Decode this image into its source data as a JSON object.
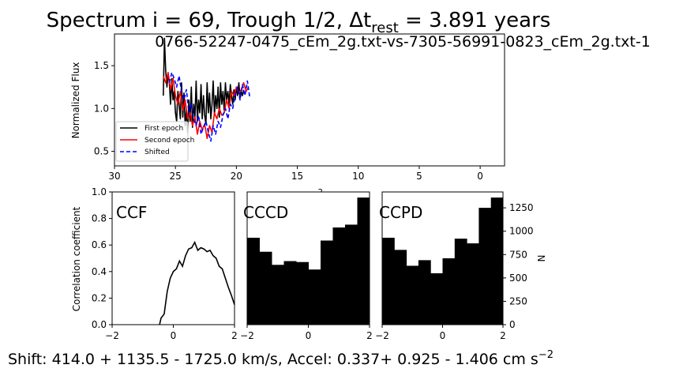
{
  "figure": {
    "title_main": "Spectrum i = 69, Trough 1/2, Δt",
    "title_sub": "rest",
    "title_tail": " = 3.891 years",
    "subtitle": "0766-52247-0475_cEm_2g.txt-vs-7305-56991-0823_cEm_2g.txt-1",
    "footer_main": "Shift: 414.0 + 1135.5 - 1725.0 km/s, Accel: 0.337+ 0.925 - 1.406 cm s",
    "footer_sup": "−2"
  },
  "chart_data": [
    {
      "id": "spectrum",
      "type": "line",
      "ylabel": "Normalized Flux",
      "xlabel_partial": "-2",
      "xlim": [
        30,
        -2
      ],
      "ylim": [
        0.33,
        1.87
      ],
      "xticks": [
        30,
        25,
        20,
        15,
        10,
        5,
        0
      ],
      "yticks": [
        0.5,
        1.0,
        1.5
      ],
      "xtick_labels": [
        "30",
        "25",
        "20",
        "15",
        "10",
        "5",
        "0"
      ],
      "ytick_labels": [
        "0.5",
        "1.0",
        "1.5"
      ],
      "legend": {
        "position": "lower-left",
        "entries": [
          "First epoch",
          "Second epoch",
          "Shifted"
        ]
      },
      "colors": {
        "first": "#000000",
        "second": "#ff0000",
        "shifted": "#0000ff",
        "gray": "#bfbfbf"
      },
      "series": [
        {
          "name": "First epoch",
          "style": "solid",
          "x": [
            26.0,
            25.9,
            25.8,
            25.7,
            25.6,
            25.5,
            25.4,
            25.3,
            25.2,
            25.1,
            25.0,
            24.9,
            24.8,
            24.7,
            24.6,
            24.5,
            24.4,
            24.3,
            24.2,
            24.1,
            24.0,
            23.9,
            23.8,
            23.7,
            23.6,
            23.5,
            23.4,
            23.3,
            23.2,
            23.1,
            23.0,
            22.9,
            22.8,
            22.7,
            22.6,
            22.5,
            22.4,
            22.3,
            22.2,
            22.1,
            22.0,
            21.9,
            21.8,
            21.7,
            21.6,
            21.5,
            21.4,
            21.3,
            21.2,
            21.1,
            21.0,
            20.9,
            20.8,
            20.7,
            20.6,
            20.5,
            20.4,
            20.3,
            20.2,
            20.1,
            20.0,
            19.9,
            19.8,
            19.7,
            19.6,
            19.5,
            19.4
          ],
          "y": [
            1.15,
            1.82,
            1.45,
            1.25,
            1.4,
            1.3,
            1.05,
            1.35,
            1.1,
            1.2,
            0.95,
            0.85,
            1.2,
            1.05,
            0.88,
            1.3,
            0.9,
            1.18,
            0.8,
            0.98,
            0.72,
            1.1,
            0.85,
            1.25,
            0.78,
            1.05,
            0.9,
            1.32,
            0.85,
            1.1,
            0.95,
            1.28,
            0.88,
            1.15,
            0.92,
            0.82,
            1.3,
            0.95,
            1.18,
            0.88,
            1.05,
            1.32,
            0.92,
            1.15,
            1.0,
            1.25,
            0.9,
            1.3,
            1.05,
            1.2,
            0.98,
            1.3,
            1.1,
            1.2,
            1.05,
            1.28,
            1.15,
            1.05,
            1.22,
            1.1,
            1.25,
            1.15,
            1.3,
            1.12,
            1.2,
            1.15,
            1.22
          ]
        },
        {
          "name": "Second epoch",
          "style": "solid",
          "x": [
            26.0,
            25.8,
            25.6,
            25.4,
            25.2,
            25.0,
            24.8,
            24.6,
            24.4,
            24.2,
            24.0,
            23.8,
            23.6,
            23.4,
            23.2,
            23.0,
            22.8,
            22.6,
            22.4,
            22.2,
            22.0,
            21.8,
            21.6,
            21.4,
            21.2,
            21.0,
            20.8,
            20.6,
            20.4,
            20.2,
            20.0,
            19.8,
            19.6,
            19.4,
            19.2,
            19.0
          ],
          "y": [
            1.38,
            1.3,
            1.42,
            1.22,
            1.35,
            1.15,
            1.05,
            1.2,
            0.98,
            1.1,
            0.88,
            0.95,
            0.8,
            0.9,
            0.7,
            0.85,
            0.75,
            0.82,
            0.65,
            0.8,
            0.72,
            0.95,
            0.88,
            1.0,
            0.92,
            0.95,
            1.1,
            1.0,
            1.2,
            1.15,
            1.25,
            1.18,
            1.22,
            1.3,
            1.2,
            1.25
          ]
        },
        {
          "name": "Shifted",
          "style": "dashed",
          "x": [
            25.5,
            25.3,
            25.1,
            24.9,
            24.7,
            24.5,
            24.3,
            24.1,
            23.9,
            23.7,
            23.5,
            23.3,
            23.1,
            22.9,
            22.7,
            22.5,
            22.3,
            22.1,
            21.9,
            21.7,
            21.5,
            21.3,
            21.1,
            20.9,
            20.7,
            20.5,
            20.3,
            20.1,
            19.9,
            19.7,
            19.5,
            19.3,
            19.1,
            18.9
          ],
          "y": [
            1.3,
            1.42,
            1.35,
            1.25,
            1.38,
            1.2,
            1.1,
            1.22,
            0.95,
            1.05,
            0.88,
            0.8,
            0.92,
            0.7,
            0.78,
            0.85,
            0.72,
            0.62,
            0.8,
            0.7,
            0.85,
            0.78,
            0.92,
            1.0,
            0.88,
            1.05,
            1.0,
            1.15,
            1.25,
            1.1,
            1.28,
            1.15,
            1.32,
            1.12
          ]
        }
      ]
    },
    {
      "id": "ccf",
      "type": "line",
      "label": "CCF",
      "ylabel": "Correlation coefficient",
      "xlim": [
        -2,
        2
      ],
      "ylim": [
        0,
        1
      ],
      "xticks": [
        -2,
        0,
        2
      ],
      "yticks": [
        0.0,
        0.2,
        0.4,
        0.6,
        0.8,
        1.0
      ],
      "xtick_labels": [
        "−2",
        "0",
        "2"
      ],
      "ytick_labels": [
        "0.0",
        "0.2",
        "0.4",
        "0.6",
        "0.8",
        "1.0"
      ],
      "x": [
        -0.45,
        -0.4,
        -0.3,
        -0.2,
        -0.1,
        0.0,
        0.1,
        0.2,
        0.3,
        0.4,
        0.5,
        0.6,
        0.7,
        0.8,
        0.9,
        1.0,
        1.1,
        1.2,
        1.3,
        1.4,
        1.5,
        1.6,
        1.7,
        1.8,
        1.9,
        2.0
      ],
      "y": [
        0.0,
        0.05,
        0.08,
        0.25,
        0.35,
        0.4,
        0.42,
        0.48,
        0.44,
        0.52,
        0.57,
        0.58,
        0.62,
        0.56,
        0.58,
        0.57,
        0.55,
        0.56,
        0.52,
        0.5,
        0.44,
        0.42,
        0.35,
        0.28,
        0.22,
        0.15
      ]
    },
    {
      "id": "cccd",
      "type": "bar",
      "label": "CCCD",
      "xlim": [
        -2,
        2
      ],
      "ylim": [
        0,
        1420
      ],
      "xticks": [
        -2,
        0,
        2
      ],
      "xtick_labels": [
        "−2",
        "0",
        "2"
      ],
      "bin_edges": [
        -2.0,
        -1.6,
        -1.2,
        -0.8,
        -0.4,
        0.0,
        0.4,
        0.8,
        1.2,
        1.6,
        2.0
      ],
      "values": [
        930,
        780,
        640,
        680,
        670,
        590,
        900,
        1040,
        1070,
        1360
      ]
    },
    {
      "id": "ccpd",
      "type": "bar",
      "label": "CCPD",
      "ylabel": "N",
      "xlim": [
        -2,
        2
      ],
      "ylim": [
        0,
        1420
      ],
      "xticks": [
        -2,
        0,
        2
      ],
      "yticks": [
        0,
        250,
        500,
        750,
        1000,
        1250
      ],
      "xtick_labels": [
        "−2",
        "0",
        "2"
      ],
      "ytick_labels": [
        "0",
        "250",
        "500",
        "750",
        "1000",
        "1250"
      ],
      "bin_edges": [
        -2.0,
        -1.6,
        -1.2,
        -0.8,
        -0.4,
        0.0,
        0.4,
        0.8,
        1.2,
        1.6,
        2.0
      ],
      "values": [
        930,
        800,
        630,
        690,
        550,
        710,
        920,
        870,
        1250,
        1360
      ]
    }
  ]
}
